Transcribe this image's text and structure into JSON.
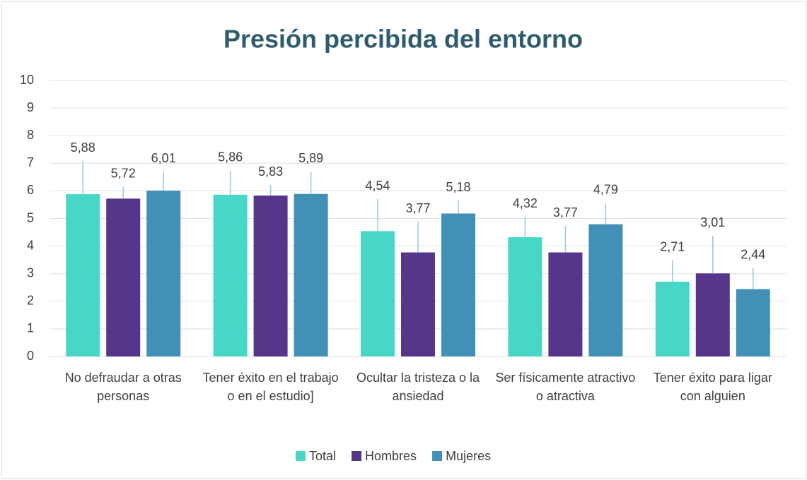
{
  "chart_data": {
    "type": "bar",
    "title": "Presión percibida del entorno",
    "categories": [
      "No defraudar a otras personas",
      "Tener éxito en el trabajo o en el estudio]",
      "Ocultar la tristeza o la ansiedad",
      "Ser físicamente atractivo o atractiva",
      "Tener éxito para ligar con alguien"
    ],
    "series": [
      {
        "name": "Total",
        "color": "#48d6c6",
        "values": [
          5.88,
          5.86,
          4.54,
          4.32,
          2.71
        ],
        "value_labels": [
          "5,88",
          "5,86",
          "4,54",
          "4,32",
          "2,71"
        ],
        "errors": [
          1.2,
          0.87,
          1.16,
          0.74,
          0.77
        ]
      },
      {
        "name": "Hombres",
        "color": "#56368a",
        "values": [
          5.72,
          5.83,
          3.77,
          3.77,
          3.01
        ],
        "value_labels": [
          "5,72",
          "5,83",
          "3,77",
          "3,77",
          "3,01"
        ],
        "errors": [
          0.42,
          0.38,
          1.11,
          0.96,
          1.36
        ]
      },
      {
        "name": "Mujeres",
        "color": "#4390b6",
        "values": [
          6.01,
          5.89,
          5.18,
          4.79,
          2.44
        ],
        "value_labels": [
          "6,01",
          "5,89",
          "5,18",
          "4,79",
          "2,44"
        ],
        "errors": [
          0.69,
          0.81,
          0.47,
          0.76,
          0.76
        ]
      }
    ],
    "ylim": [
      0,
      10
    ],
    "yticks": [
      0,
      1,
      2,
      3,
      4,
      5,
      6,
      7,
      8,
      9,
      10
    ],
    "grid": true,
    "legend": "bottom"
  }
}
